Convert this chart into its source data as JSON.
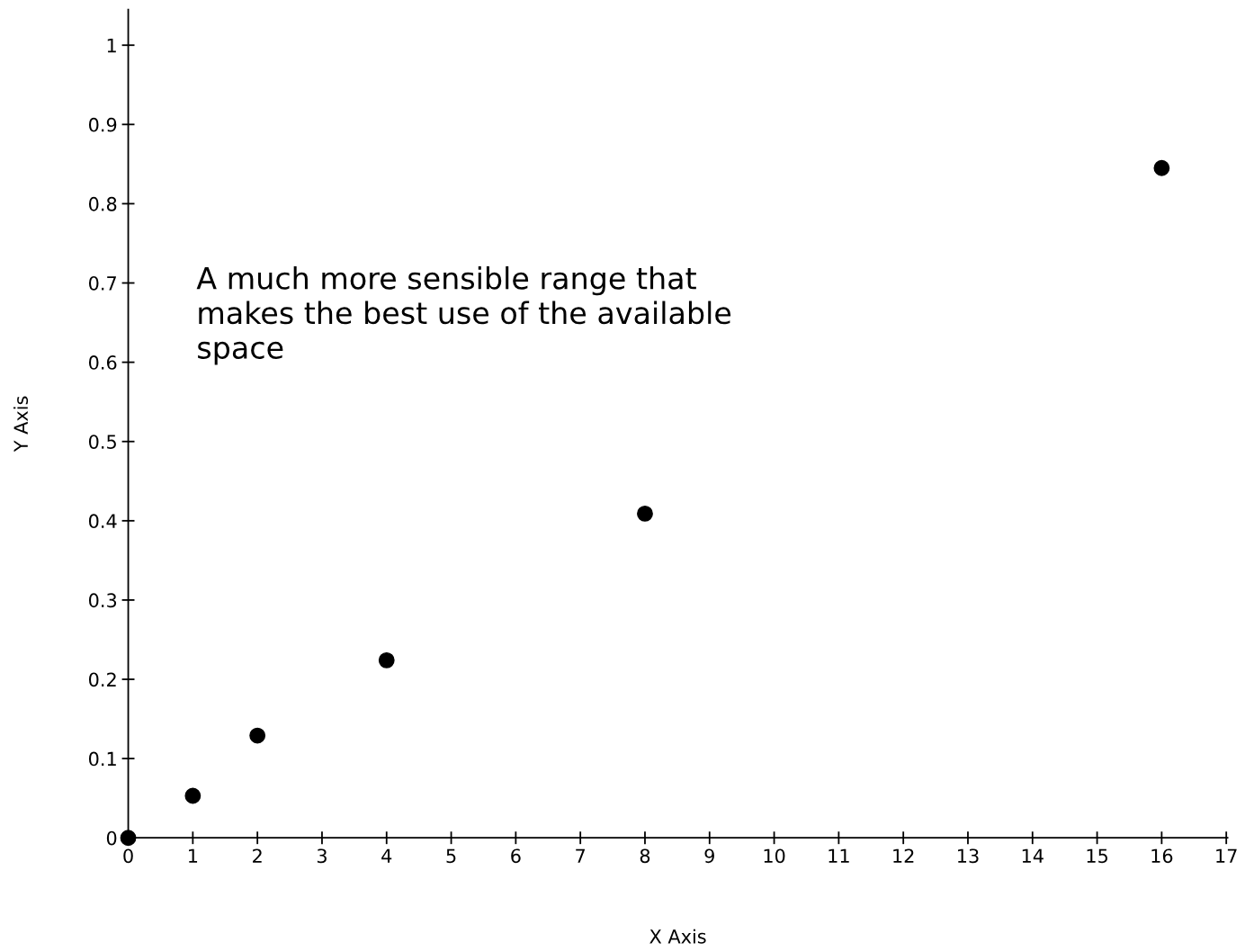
{
  "chart_data": {
    "type": "scatter",
    "xlabel": "X Axis",
    "ylabel": "Y Axis",
    "x": [
      0,
      1,
      2,
      4,
      8,
      16
    ],
    "series": [
      {
        "color": "#000000",
        "values": [
          0,
          0.053,
          0.129,
          0.224,
          0.409,
          0.845
        ]
      }
    ],
    "marker": "circle",
    "xlim": [
      0,
      17.02
    ],
    "ylim": [
      0,
      1.045
    ],
    "xticks": [
      0,
      1,
      2,
      3,
      4,
      5,
      6,
      7,
      8,
      9,
      10,
      11,
      12,
      13,
      14,
      15,
      16,
      17
    ],
    "yticks": [
      0,
      0.1,
      0.2,
      0.3,
      0.4,
      0.5,
      0.6,
      0.7,
      0.8,
      0.9,
      1
    ],
    "annotations": [
      "A much more sensible range that\nmakes the best use of the available\nspace"
    ],
    "grid": false,
    "legend": false
  }
}
